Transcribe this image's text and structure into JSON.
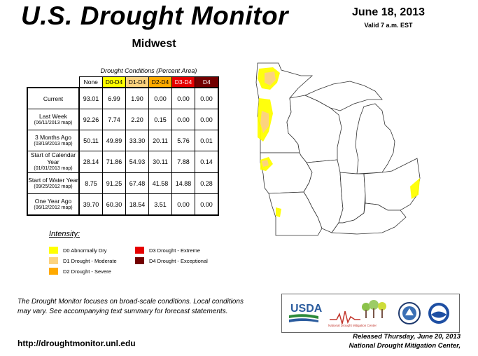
{
  "header": {
    "title": "U.S. Drought Monitor",
    "region": "Midwest",
    "date": "June 18, 2013",
    "valid": "Valid 7 a.m. EST"
  },
  "table": {
    "caption": "Drought Conditions (Percent Area)",
    "columns": [
      "None",
      "D0-D4",
      "D1-D4",
      "D2-D4",
      "D3-D4",
      "D4"
    ],
    "column_colors": [
      "#ffffff",
      "#ffff00",
      "#fcd37f",
      "#ffaa00",
      "#e60000",
      "#730000"
    ],
    "rows": [
      {
        "label": "Current",
        "sub": "",
        "values": [
          "93.01",
          "6.99",
          "1.90",
          "0.00",
          "0.00",
          "0.00"
        ]
      },
      {
        "label": "Last Week",
        "sub": "(06/11/2013 map)",
        "values": [
          "92.26",
          "7.74",
          "2.20",
          "0.15",
          "0.00",
          "0.00"
        ]
      },
      {
        "label": "3 Months Ago",
        "sub": "(03/19/2013 map)",
        "values": [
          "50.11",
          "49.89",
          "33.30",
          "20.11",
          "5.76",
          "0.01"
        ]
      },
      {
        "label": "Start of Calendar Year",
        "sub": "(01/01/2013 map)",
        "values": [
          "28.14",
          "71.86",
          "54.93",
          "30.11",
          "7.88",
          "0.14"
        ]
      },
      {
        "label": "Start of Water Year",
        "sub": "(09/25/2012 map)",
        "values": [
          "8.75",
          "91.25",
          "67.48",
          "41.58",
          "14.88",
          "0.28"
        ]
      },
      {
        "label": "One Year Ago",
        "sub": "(06/12/2012 map)",
        "values": [
          "39.70",
          "60.30",
          "18.54",
          "3.51",
          "0.00",
          "0.00"
        ]
      }
    ]
  },
  "legend": {
    "title": "Intensity:",
    "items": [
      {
        "label": "D0 Abnormally Dry",
        "color": "#ffff00"
      },
      {
        "label": "D1 Drought - Moderate",
        "color": "#fcd37f"
      },
      {
        "label": "D2 Drought - Severe",
        "color": "#ffaa00"
      },
      {
        "label": "D3 Drought - Extreme",
        "color": "#e60000"
      },
      {
        "label": "D4 Drought - Exceptional",
        "color": "#730000"
      }
    ]
  },
  "footer": {
    "note": "The Drought Monitor focuses on broad-scale conditions. Local conditions may vary. See accompanying text summary for forecast statements.",
    "url": "http://droughtmonitor.unl.edu",
    "released_line1": "Released Thursday, June 20, 2013",
    "released_line2": "National Drought Mitigation Center,"
  },
  "logos": {
    "usda": "USDA",
    "ndmc": "National Drought Mitigation Center"
  },
  "map": {
    "states": [
      "Minnesota",
      "Wisconsin",
      "Michigan",
      "Iowa",
      "Illinois",
      "Indiana",
      "Ohio",
      "Missouri",
      "Kentucky"
    ],
    "drought_colors": {
      "d0": "#ffff00",
      "d1": "#fcd37f"
    }
  }
}
